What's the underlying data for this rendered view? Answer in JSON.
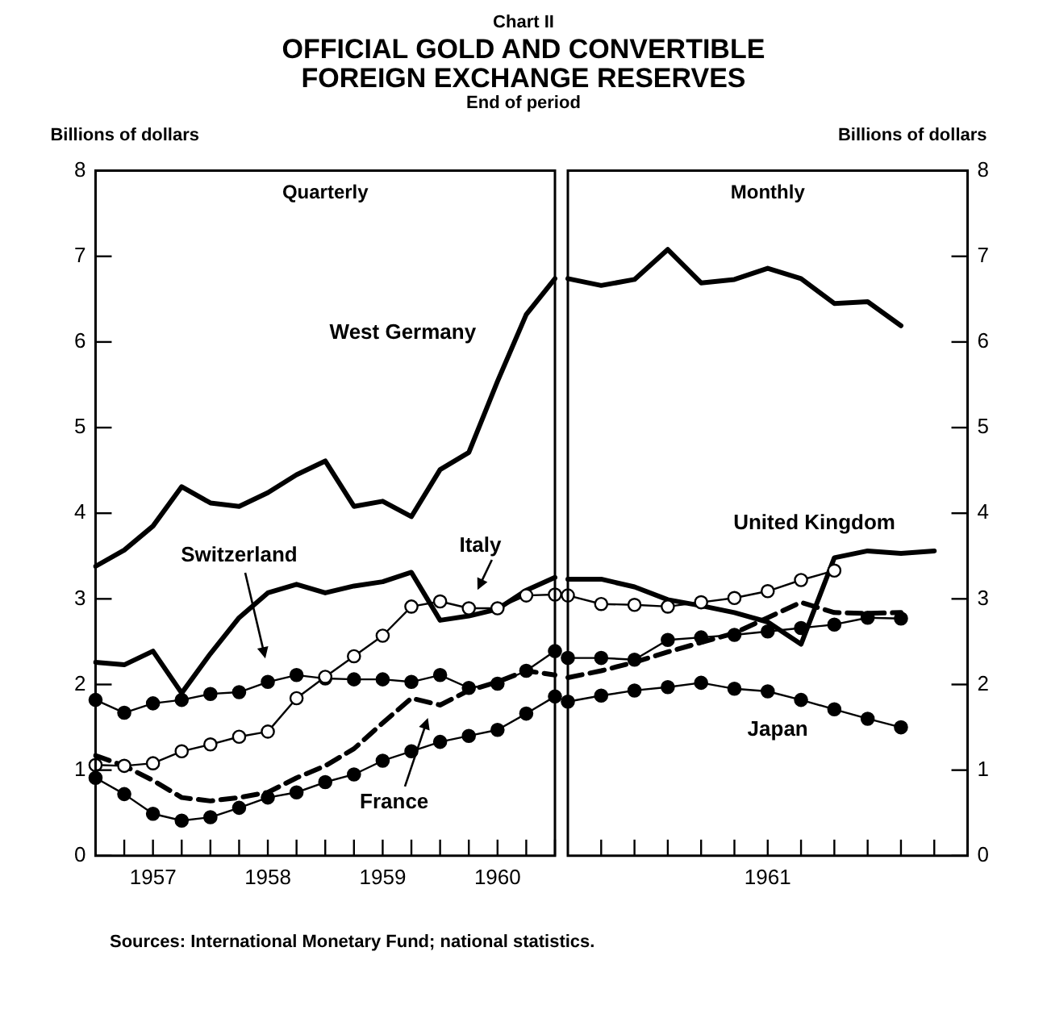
{
  "chart_data": [
    {
      "type": "line",
      "title": "OFFICIAL GOLD AND CONVERTIBLE FOREIGN EXCHANGE RESERVES",
      "subtitle": "End of period",
      "ylabel": "Billions of dollars",
      "annotations": [
        "Chart II",
        "Quarterly",
        "Sources:  International Monetary Fund; national statistics."
      ],
      "categories": [
        null,
        null,
        "1957",
        null,
        null,
        null,
        "1958",
        null,
        null,
        null,
        "1959",
        null,
        null,
        null,
        "1960",
        null,
        null
      ],
      "ylim": [
        0,
        8
      ],
      "yticks": [
        0,
        1,
        2,
        3,
        4,
        5,
        6,
        7,
        8
      ],
      "series": [
        {
          "name": "West Germany",
          "color": "#000000",
          "marker": "none",
          "values": [
            3.38,
            3.57,
            3.85,
            4.31,
            4.12,
            4.08,
            4.24,
            4.45,
            4.61,
            4.08,
            4.14,
            3.96,
            4.51,
            4.71,
            5.54,
            6.32,
            6.74
          ]
        },
        {
          "color": "#000000",
          "marker": "none",
          "values": [
            2.26,
            2.23,
            2.39,
            1.9,
            2.36,
            2.78,
            3.07,
            3.17,
            3.07,
            3.15,
            3.2,
            3.31,
            2.75,
            2.8,
            2.88,
            3.1,
            3.25
          ]
        },
        {
          "name": "Switzerland",
          "color": "#000000",
          "marker": "circle",
          "values": [
            1.82,
            1.67,
            1.78,
            1.82,
            1.89,
            1.91,
            2.03,
            2.11,
            2.07,
            2.06,
            2.06,
            2.03,
            2.11,
            1.96,
            2.01,
            2.16,
            2.39
          ]
        },
        {
          "name": "Italy",
          "color": "#000000",
          "marker": "circle",
          "colors": [
            "#ffffff",
            "#ffffff",
            "#ffffff",
            "#ffffff",
            "#ffffff",
            "#ffffff",
            "#ffffff",
            "#ffffff",
            "#ffffff",
            "#ffffff",
            "#ffffff",
            "#ffffff",
            "#ffffff",
            "#ffffff",
            "#ffffff",
            "#ffffff",
            "#ffffff"
          ],
          "values": [
            1.06,
            1.05,
            1.08,
            1.22,
            1.3,
            1.39,
            1.45,
            1.84,
            2.09,
            2.33,
            2.57,
            2.91,
            2.97,
            2.89,
            2.89,
            3.04,
            3.05
          ]
        },
        {
          "name": "France",
          "color": "#000000",
          "marker": "none",
          "line_style": "dashed",
          "values": [
            1.17,
            1.05,
            0.88,
            0.68,
            0.64,
            0.68,
            0.74,
            0.91,
            1.05,
            1.25,
            1.55,
            1.84,
            1.76,
            1.93,
            2.03,
            2.16,
            2.11
          ]
        },
        {
          "color": "#000000",
          "marker": "circle",
          "values": [
            0.91,
            0.72,
            0.49,
            0.41,
            0.45,
            0.56,
            0.68,
            0.74,
            0.86,
            0.95,
            1.11,
            1.22,
            1.33,
            1.4,
            1.47,
            1.66,
            1.86
          ]
        }
      ]
    },
    {
      "type": "line",
      "ylabel": "Billions of dollars",
      "annotations": [
        "Monthly"
      ],
      "categories": [
        null,
        null,
        null,
        null,
        null,
        null,
        "1961",
        null,
        null,
        null,
        null,
        null,
        null
      ],
      "ylim": [
        0,
        8
      ],
      "yticks": [
        0,
        1,
        2,
        3,
        4,
        5,
        6,
        7,
        8
      ],
      "series": [
        {
          "color": "#000000",
          "marker": "none",
          "values": [
            6.74,
            6.66,
            6.73,
            7.08,
            6.69,
            6.73,
            6.86,
            6.74,
            6.45,
            6.47,
            6.19,
            null,
            null
          ]
        },
        {
          "name": "United Kingdom",
          "color": "#000000",
          "marker": "none",
          "values": [
            3.23,
            3.23,
            3.14,
            2.99,
            2.92,
            2.84,
            2.73,
            2.47,
            3.48,
            3.56,
            3.53,
            3.56,
            null
          ]
        },
        {
          "color": "#000000",
          "marker": "circle",
          "values": [
            2.31,
            2.31,
            2.29,
            2.52,
            2.55,
            2.58,
            2.62,
            2.66,
            2.7,
            2.78,
            2.77,
            null,
            null
          ]
        },
        {
          "color": "#000000",
          "marker": "circle",
          "colors": [
            "#ffffff",
            "#ffffff",
            "#ffffff",
            "#ffffff",
            "#ffffff",
            "#ffffff",
            "#ffffff",
            "#ffffff",
            "#ffffff",
            null,
            null,
            null,
            null
          ],
          "values": [
            3.04,
            2.94,
            2.93,
            2.91,
            2.96,
            3.01,
            3.09,
            3.22,
            3.33,
            null,
            null,
            null,
            null
          ]
        },
        {
          "color": "#000000",
          "marker": "none",
          "line_style": "dashed",
          "values": [
            2.08,
            2.16,
            2.26,
            2.38,
            2.49,
            2.6,
            2.78,
            2.96,
            2.84,
            2.83,
            2.84,
            null,
            null
          ]
        },
        {
          "name": "Japan",
          "color": "#000000",
          "marker": "circle",
          "values": [
            1.8,
            1.87,
            1.93,
            1.97,
            2.02,
            1.95,
            1.92,
            1.82,
            1.71,
            1.6,
            1.5,
            null,
            null
          ]
        }
      ]
    }
  ]
}
